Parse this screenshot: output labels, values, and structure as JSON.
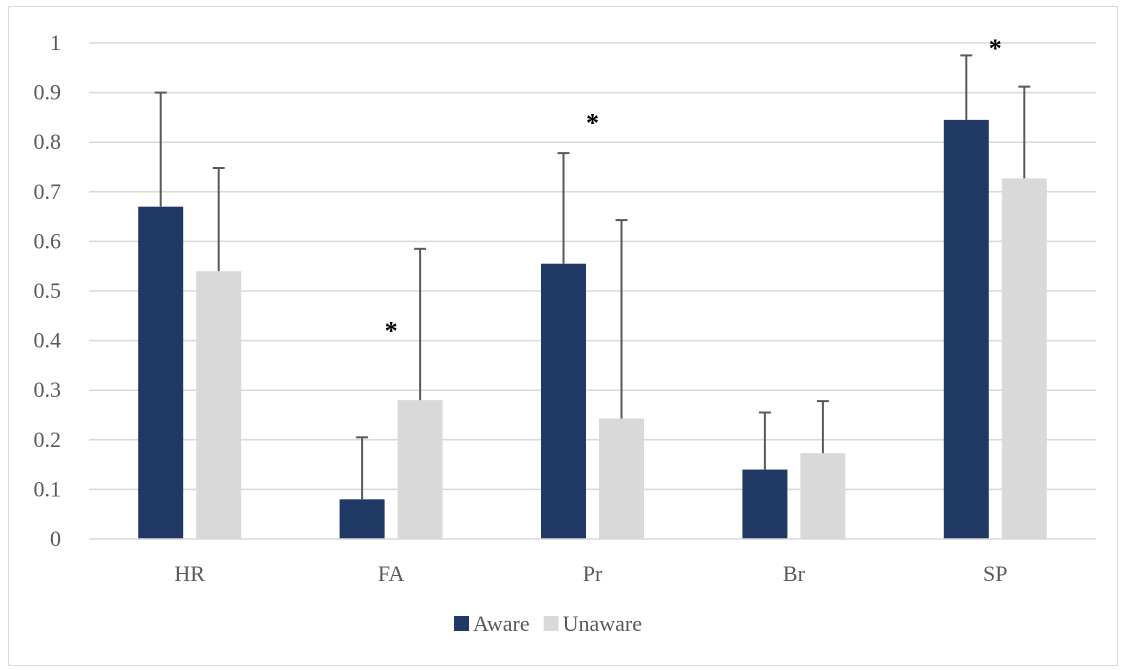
{
  "chart_data": {
    "type": "bar",
    "title": "",
    "xlabel": "",
    "ylabel": "",
    "categories": [
      "HR",
      "FA",
      "Pr",
      "Br",
      "SP"
    ],
    "ylim": [
      0,
      1
    ],
    "yticks": [
      "0",
      "0.1",
      "0.2",
      "0.3",
      "0.4",
      "0.5",
      "0.6",
      "0.7",
      "0.8",
      "0.9",
      "1"
    ],
    "grid": true,
    "legend_position": "bottom",
    "series": [
      {
        "name": "Aware",
        "color": "#1f3864",
        "values": [
          0.67,
          0.08,
          0.555,
          0.14,
          0.845
        ],
        "error_upper": [
          0.9,
          0.205,
          0.778,
          0.255,
          0.975
        ]
      },
      {
        "name": "Unaware",
        "color": "#d9d9d9",
        "values": [
          0.54,
          0.28,
          0.243,
          0.173,
          0.727
        ],
        "error_upper": [
          0.748,
          0.585,
          0.643,
          0.278,
          0.912
        ]
      }
    ],
    "annotations": [
      {
        "text": "*",
        "category": "FA",
        "y": 0.43
      },
      {
        "text": "*",
        "category": "Pr",
        "y": 0.85
      },
      {
        "text": "*",
        "category": "SP",
        "y": 1.0
      }
    ]
  }
}
